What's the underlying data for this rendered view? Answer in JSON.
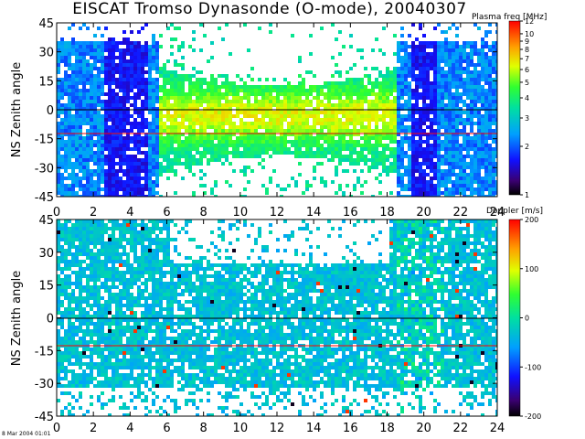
{
  "title": "EISCAT Tromso Dynasonde (O-mode),  20040307",
  "timestamp": "8 Mar 2004 01:01",
  "colors": {
    "line_ref": "#000000",
    "line_red": "#ff0000"
  },
  "chart_data": [
    {
      "type": "heatmap",
      "title": "EISCAT Tromso Dynasonde (O-mode),  20040307",
      "ylabel": "NS Zenith angle",
      "xlabel": "",
      "xticks": [
        "0",
        "2",
        "4",
        "6",
        "8",
        "10",
        "12",
        "14",
        "16",
        "18",
        "20",
        "22",
        "24"
      ],
      "yticks": [
        "45",
        "30",
        "15",
        "0",
        "-15",
        "-30",
        "-45"
      ],
      "xlim": [
        0,
        24
      ],
      "ylim": [
        -45,
        45
      ],
      "reference_lines": [
        0
      ],
      "red_line": -13,
      "colorbar": {
        "title": "Plasma freq [MHz]",
        "scale": "log",
        "range": [
          1,
          12
        ],
        "ticks": [
          "12",
          "10",
          "9",
          "8",
          "7",
          "6",
          "5",
          "4",
          "3",
          "2",
          "1"
        ]
      }
    },
    {
      "type": "heatmap",
      "ylabel": "NS Zenith angle",
      "xlabel": "",
      "xticks": [
        "0",
        "2",
        "4",
        "6",
        "8",
        "10",
        "12",
        "14",
        "16",
        "18",
        "20",
        "22",
        "24"
      ],
      "yticks": [
        "45",
        "30",
        "15",
        "0",
        "-15",
        "-30",
        "-45"
      ],
      "xlim": [
        0,
        24
      ],
      "ylim": [
        -45,
        45
      ],
      "reference_lines": [
        0
      ],
      "red_line": -13,
      "colorbar": {
        "title": "Doppler [m/s]",
        "scale": "linear",
        "range": [
          -200,
          200
        ],
        "ticks": [
          "200",
          "100",
          "0",
          "-100",
          "-200"
        ]
      }
    }
  ]
}
